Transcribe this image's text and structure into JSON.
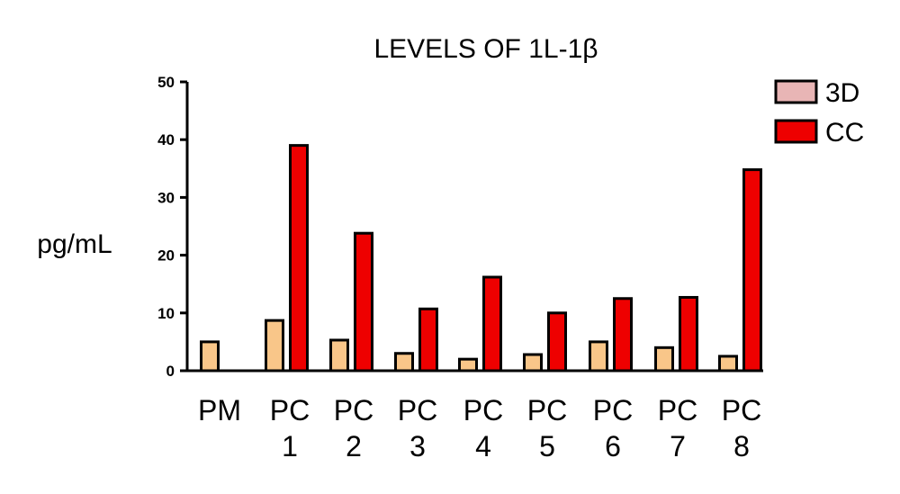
{
  "chart_data": {
    "type": "bar",
    "title": "LEVELS OF 1L-1β",
    "xlabel": "",
    "ylabel": "pg/mL",
    "ylim": [
      0,
      50
    ],
    "yticks": [
      "0",
      "10",
      "20",
      "30",
      "40",
      "50"
    ],
    "categories": [
      [
        "PM"
      ],
      [
        "PC",
        "1"
      ],
      [
        "PC",
        "2"
      ],
      [
        "PC",
        "3"
      ],
      [
        "PC",
        "4"
      ],
      [
        "PC",
        "5"
      ],
      [
        "PC",
        "6"
      ],
      [
        "PC",
        "7"
      ],
      [
        "PC",
        "8"
      ]
    ],
    "series": [
      {
        "name": "3D",
        "color": "#f9c689",
        "values": [
          5,
          8.7,
          5.3,
          3,
          2,
          2.8,
          5,
          4,
          2.5
        ]
      },
      {
        "name": "CC",
        "color": "#ee0000",
        "values": [
          null,
          39,
          23.8,
          10.7,
          16.2,
          10,
          12.5,
          12.7,
          34.8
        ]
      }
    ],
    "legend": {
      "position": "top-right",
      "items": [
        {
          "name": "3D",
          "color": "#e8b5b5"
        },
        {
          "name": "CC",
          "color": "#ee0000"
        }
      ]
    },
    "grid": false
  }
}
